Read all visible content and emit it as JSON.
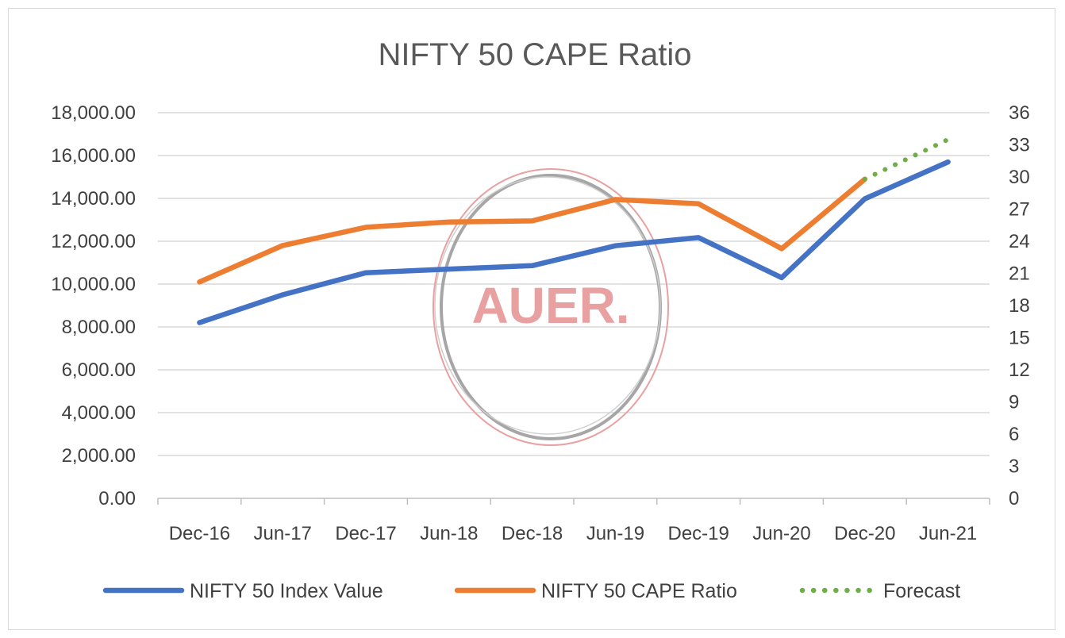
{
  "chart_data": {
    "type": "line",
    "title": "NIFTY 50 CAPE Ratio",
    "categories": [
      "Dec-16",
      "Jun-17",
      "Dec-17",
      "Jun-18",
      "Dec-18",
      "Jun-19",
      "Dec-19",
      "Jun-20",
      "Dec-20",
      "Jun-21"
    ],
    "y_left": {
      "range": [
        0,
        18000
      ],
      "ticks": [
        "0.00",
        "2,000.00",
        "4,000.00",
        "6,000.00",
        "8,000.00",
        "10,000.00",
        "12,000.00",
        "14,000.00",
        "16,000.00",
        "18,000.00"
      ],
      "tick_values": [
        0,
        2000,
        4000,
        6000,
        8000,
        10000,
        12000,
        14000,
        16000,
        18000
      ]
    },
    "y_right": {
      "range": [
        0,
        36
      ],
      "ticks": [
        "0",
        "3",
        "6",
        "9",
        "12",
        "15",
        "18",
        "21",
        "24",
        "27",
        "30",
        "33",
        "36"
      ],
      "tick_values": [
        0,
        3,
        6,
        9,
        12,
        15,
        18,
        21,
        24,
        27,
        30,
        33,
        36
      ]
    },
    "series": [
      {
        "name": "NIFTY 50 Index Value",
        "axis": "left",
        "color": "#4472c4",
        "style": "solid",
        "values": [
          8200,
          9500,
          10530,
          10700,
          10860,
          11790,
          12170,
          10300,
          13980,
          15700
        ]
      },
      {
        "name": "NIFTY 50 CAPE Ratio",
        "axis": "right",
        "color": "#ed7d31",
        "style": "solid",
        "values": [
          20.2,
          23.6,
          25.3,
          25.8,
          25.9,
          27.9,
          27.5,
          23.3,
          29.8,
          null
        ]
      },
      {
        "name": "Forecast",
        "axis": "right",
        "color": "#70ad47",
        "style": "dotted",
        "values": [
          null,
          null,
          null,
          null,
          null,
          null,
          null,
          null,
          29.8,
          33.5
        ]
      }
    ],
    "grid": true,
    "legend_position": "bottom"
  },
  "watermark": {
    "text": "AUER.",
    "color": "#e8a0a0"
  }
}
